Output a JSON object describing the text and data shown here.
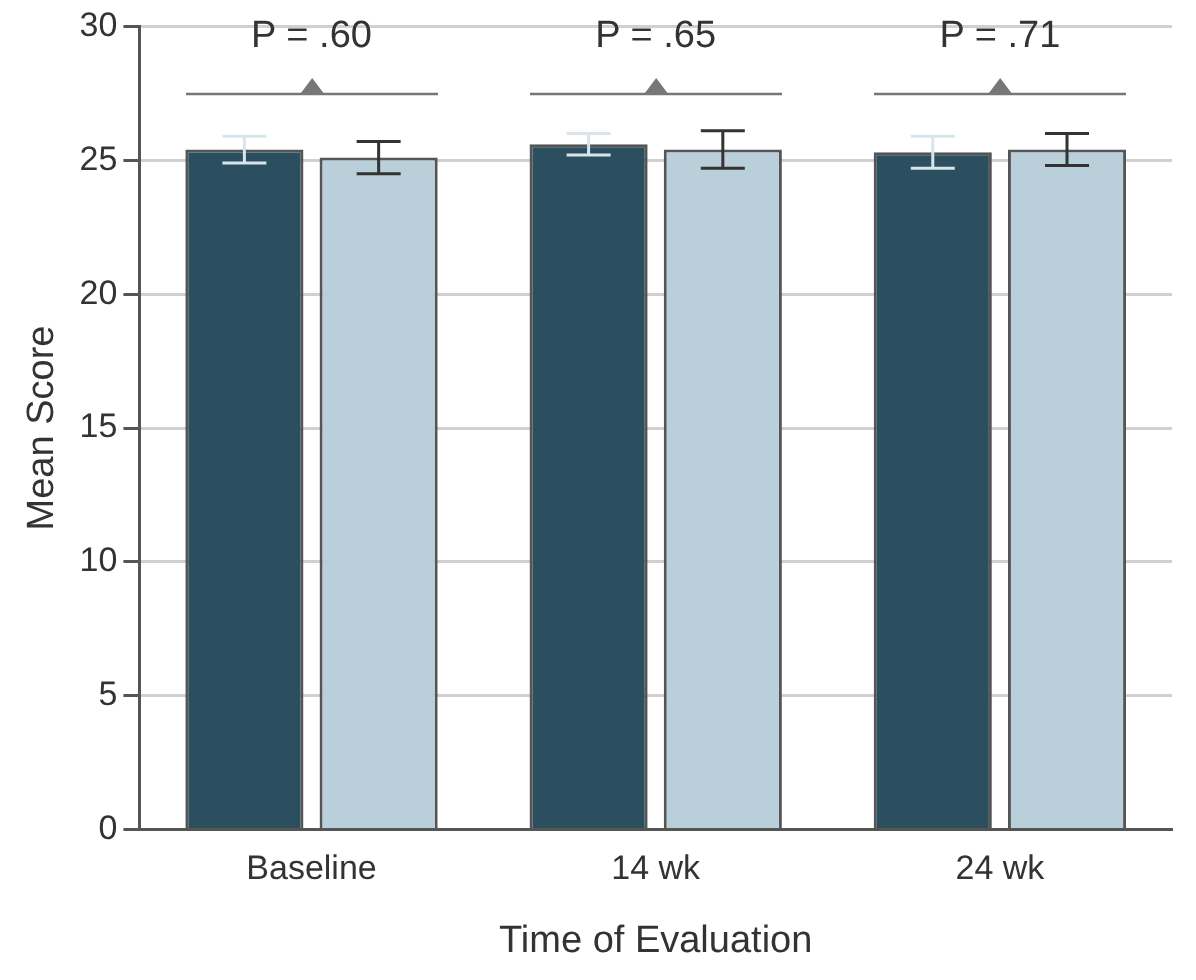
{
  "chart_data": {
    "type": "bar",
    "xlabel": "Time of Evaluation",
    "ylabel": "Mean Score",
    "categories": [
      "Baseline",
      "14 wk",
      "24 wk"
    ],
    "series": [
      {
        "color": "#2b4f5e",
        "values": [
          25.4,
          25.6,
          25.3
        ],
        "errors": [
          0.5,
          0.4,
          0.6
        ]
      },
      {
        "color": "#b9cfd9",
        "values": [
          25.1,
          25.4,
          25.4
        ],
        "errors": [
          0.6,
          0.7,
          0.6
        ]
      }
    ],
    "ylim": [
      0,
      30
    ],
    "yticks": [
      0,
      5,
      10,
      15,
      20,
      25,
      30
    ],
    "grid": "y",
    "legend": false,
    "annotations": [
      "P = .60",
      "P = .65",
      "P = .71"
    ]
  }
}
